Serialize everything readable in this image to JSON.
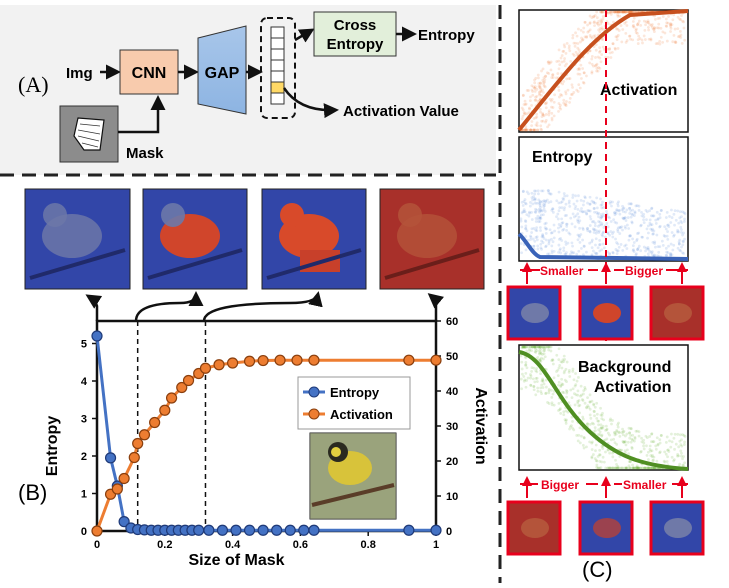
{
  "panel_a": {
    "label": "(A)",
    "img": "Img",
    "cnn": "CNN",
    "gap": "GAP",
    "cross_entropy_line1": "Cross",
    "cross_entropy_line2": "Entropy",
    "entropy_out": "Entropy",
    "activation_value": "Activation Value",
    "mask": "Mask"
  },
  "panel_b": {
    "label": "(B)",
    "xlabel": "Size of Mask",
    "ylabel_left": "Entropy",
    "ylabel_right": "Activation",
    "legend": [
      "Entropy",
      "Activation"
    ]
  },
  "panel_c": {
    "label": "(C)",
    "activation": "Activation",
    "entropy": "Entropy",
    "smaller": "Smaller",
    "bigger": "Bigger",
    "background_line1": "Background",
    "background_line2": "Activation",
    "bigger2": "Bigger",
    "smaller2": "Smaller"
  },
  "colors": {
    "entropy": "#4472c4",
    "activation": "#ed7d31",
    "background_activation": "#5aa02c",
    "red_arrow": "#e8001c"
  },
  "chart_data": {
    "type": "line",
    "xlabel": "Size of Mask",
    "ylabel": "Entropy",
    "ylabel_right": "Activation",
    "x_ticks": [
      "0",
      "0.2",
      "0.4",
      "0.6",
      "0.8",
      "1"
    ],
    "y_ticks_left": [
      "0",
      "1",
      "2",
      "3",
      "4",
      "5"
    ],
    "y_ticks_right": [
      "0",
      "10",
      "20",
      "30",
      "40",
      "50",
      "60"
    ],
    "xlim": [
      0,
      1
    ],
    "ylim_left": [
      0,
      5.6
    ],
    "ylim_right": [
      0,
      60
    ],
    "legend_position": "upper-right",
    "series": [
      {
        "name": "Entropy",
        "axis": "left",
        "x": [
          0,
          0.04,
          0.06,
          0.08,
          0.1,
          0.12,
          0.14,
          0.16,
          0.18,
          0.2,
          0.22,
          0.24,
          0.26,
          0.28,
          0.3,
          0.33,
          0.37,
          0.41,
          0.45,
          0.49,
          0.53,
          0.57,
          0.61,
          0.64,
          0.92,
          1
        ],
        "y": [
          5.2,
          1.95,
          1.2,
          0.25,
          0.08,
          0.04,
          0.03,
          0.02,
          0.02,
          0.02,
          0.02,
          0.02,
          0.02,
          0.02,
          0.02,
          0.02,
          0.02,
          0.02,
          0.02,
          0.02,
          0.02,
          0.02,
          0.02,
          0.02,
          0.02,
          0.02
        ]
      },
      {
        "name": "Activation",
        "axis": "right",
        "x": [
          0,
          0.04,
          0.06,
          0.08,
          0.11,
          0.12,
          0.14,
          0.17,
          0.2,
          0.22,
          0.25,
          0.27,
          0.3,
          0.32,
          0.36,
          0.4,
          0.45,
          0.49,
          0.54,
          0.59,
          0.64,
          0.92,
          1
        ],
        "y": [
          0,
          10.5,
          12,
          15,
          21,
          25,
          27.5,
          31,
          34.5,
          38,
          41,
          43,
          45,
          46.5,
          47.5,
          48,
          48.5,
          48.7,
          48.8,
          48.8,
          48.8,
          48.8,
          48.8
        ]
      }
    ],
    "markers": [
      0.12,
      0.32
    ]
  }
}
